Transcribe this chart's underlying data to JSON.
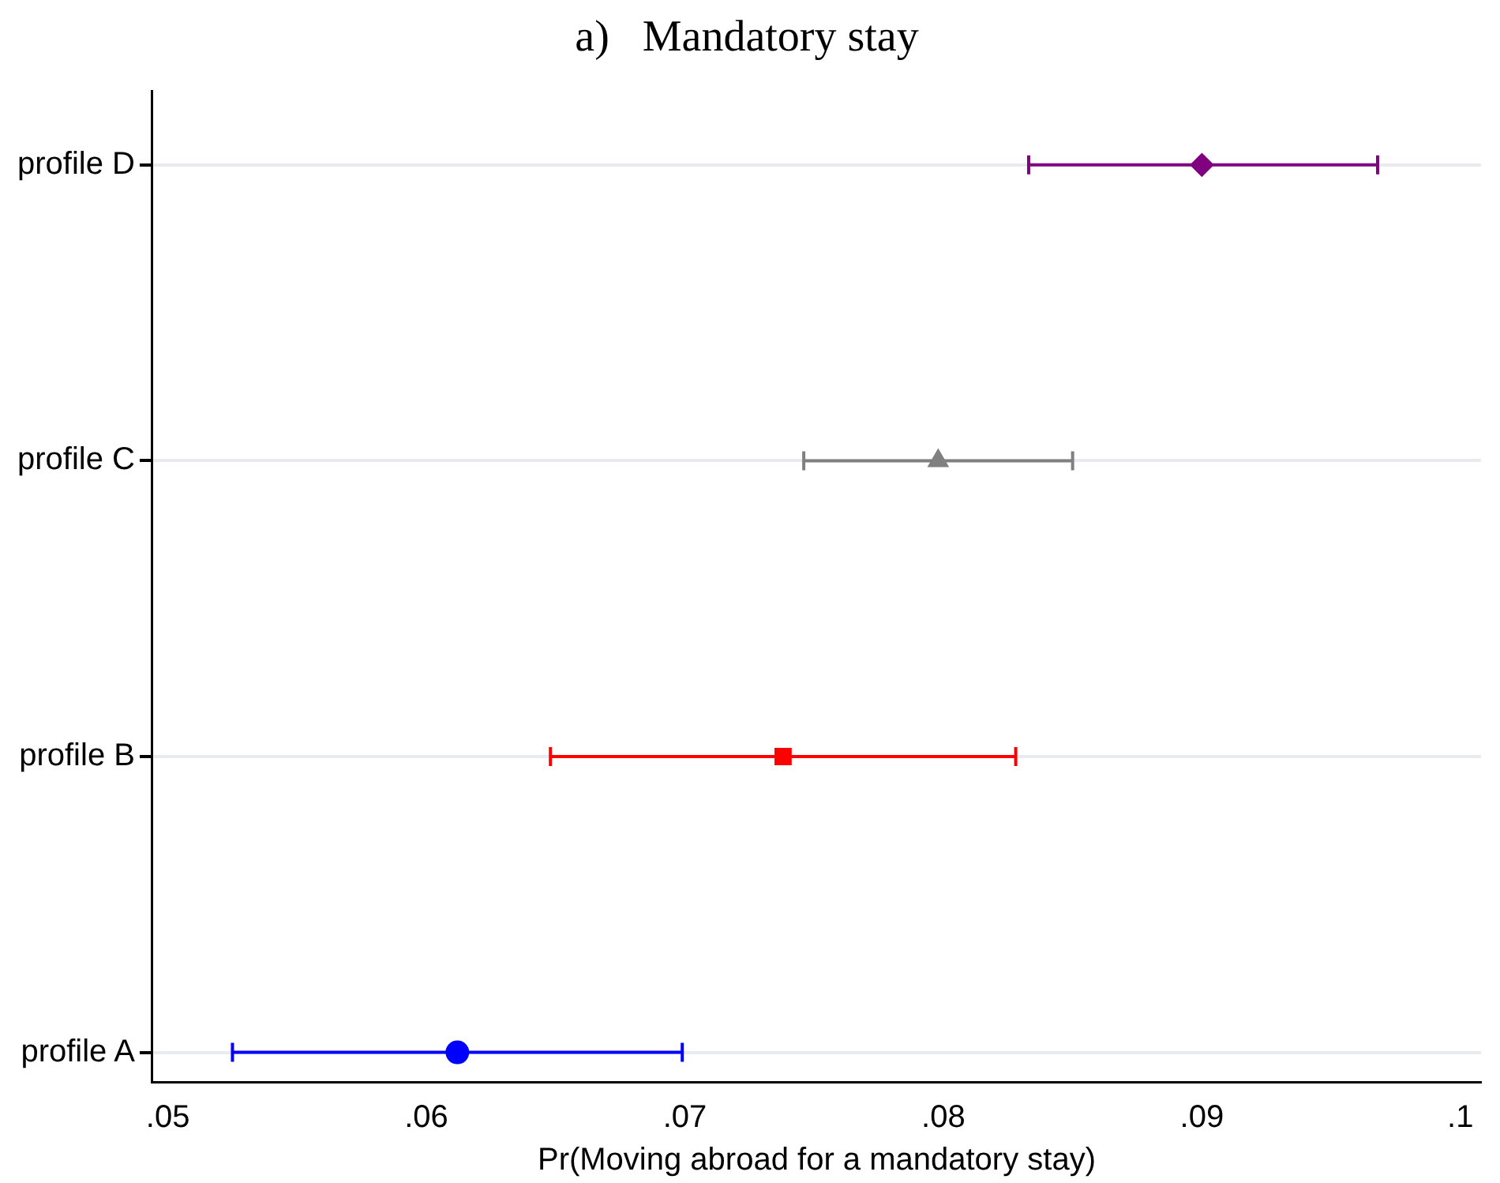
{
  "chart_data": {
    "type": "scatter",
    "orientation": "horizontal",
    "title": "a)   Mandatory stay",
    "xlabel": "Pr(Moving abroad for a mandatory stay)",
    "categories": [
      "profile D",
      "profile C",
      "profile B",
      "profile A"
    ],
    "series": [
      {
        "color": "#800080",
        "marker": "diamond",
        "values": [
          0.09,
          null,
          null,
          null
        ],
        "errors": [
          [
            0.0833,
            0.0968
          ],
          null,
          null,
          null
        ]
      },
      {
        "color": "#808080",
        "marker": "triangle",
        "values": [
          null,
          0.0798,
          null,
          null
        ],
        "errors": [
          null,
          [
            0.0746,
            0.085
          ],
          null,
          null
        ]
      },
      {
        "color": "#ff0000",
        "marker": "square",
        "values": [
          null,
          null,
          0.0738,
          null
        ],
        "errors": [
          null,
          null,
          [
            0.0648,
            0.0828
          ],
          null
        ]
      },
      {
        "color": "#0000ff",
        "marker": "circle",
        "values": [
          null,
          null,
          null,
          0.0612
        ],
        "errors": [
          null,
          null,
          null,
          [
            0.0525,
            0.0699
          ]
        ]
      }
    ],
    "xlim": [
      0.0494,
      0.1008
    ],
    "xticks": [
      {
        "value": 0.05,
        "label": ".05"
      },
      {
        "value": 0.06,
        "label": ".06"
      },
      {
        "value": 0.07,
        "label": ".07"
      },
      {
        "value": 0.08,
        "label": ".08"
      },
      {
        "value": 0.09,
        "label": ".09"
      },
      {
        "value": 0.1,
        "label": ".1"
      }
    ],
    "grid": "y",
    "legend": false
  }
}
